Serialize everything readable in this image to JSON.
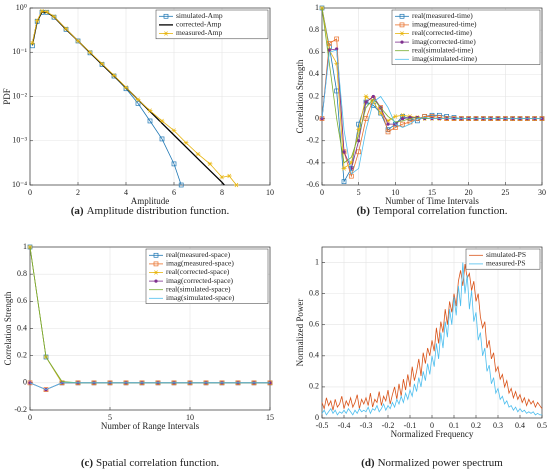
{
  "chart_data": [
    {
      "type": "line",
      "xlabel": "Amplitude",
      "ylabel": "PDF",
      "yscale": "log",
      "grid": true,
      "legend": "upper right",
      "caption_label": "(a)",
      "caption": "Amplitude distribution function.",
      "xlim": [
        0,
        10
      ],
      "xticks": [
        0,
        2,
        4,
        6,
        8,
        10
      ],
      "ylim": [
        0.0001,
        1
      ],
      "yticks": [
        {
          "value": 0.0001,
          "label": "10⁻⁴"
        },
        {
          "value": 0.001,
          "label": "10⁻³"
        },
        {
          "value": 0.01,
          "label": "10⁻²"
        },
        {
          "value": 0.1,
          "label": "10⁻¹"
        },
        {
          "value": 1,
          "label": "10⁰"
        }
      ],
      "series": [
        {
          "name": "simulated-Amp",
          "color": "#1f77b4",
          "marker": "square",
          "x": [
            0.1,
            0.3,
            0.5,
            0.7,
            1.0,
            1.5,
            2.0,
            2.5,
            3.0,
            3.5,
            4.0,
            4.5,
            5.0,
            5.5,
            6.0,
            6.3
          ],
          "values": [
            0.14,
            0.5,
            0.8,
            0.8,
            0.62,
            0.33,
            0.18,
            0.097,
            0.053,
            0.029,
            0.015,
            0.007,
            0.0028,
            0.0011,
            0.0003,
            0.0001
          ]
        },
        {
          "name": "corrected-Amp",
          "color": "#000000",
          "marker": null,
          "x": [
            0.1,
            0.3,
            0.5,
            0.7,
            1.0,
            1.5,
            2.0,
            3.0,
            4.0,
            5.0,
            6.0,
            7.0,
            8.0,
            8.1
          ],
          "values": [
            0.15,
            0.5,
            0.82,
            0.8,
            0.63,
            0.33,
            0.18,
            0.053,
            0.0158,
            0.0046,
            0.00134,
            0.00039,
            0.000115,
            0.0001
          ]
        },
        {
          "name": "measured-Amp",
          "color": "#e8b50e",
          "marker": "star",
          "x": [
            0.1,
            0.3,
            0.5,
            0.7,
            1.0,
            1.5,
            2.0,
            2.5,
            3.0,
            3.5,
            4.0,
            4.5,
            5.0,
            5.5,
            6.0,
            6.5,
            7.0,
            7.5,
            8.0,
            8.3,
            8.6
          ],
          "values": [
            0.16,
            0.52,
            0.85,
            0.82,
            0.64,
            0.34,
            0.18,
            0.1,
            0.055,
            0.03,
            0.016,
            0.0085,
            0.0048,
            0.0028,
            0.0017,
            0.0009,
            0.0005,
            0.0003,
            0.00015,
            0.00016,
            0.0001
          ]
        }
      ]
    },
    {
      "type": "line",
      "xlabel": "Number of Time Intervals",
      "ylabel": "Correlation Strength",
      "grid": true,
      "legend": "upper right",
      "caption_label": "(b)",
      "caption": "Temporal correlation function.",
      "xlim": [
        0,
        30
      ],
      "xticks": [
        0,
        5,
        10,
        15,
        20,
        25,
        30
      ],
      "ylim": [
        -0.6,
        1
      ],
      "yticks": [
        -0.6,
        -0.4,
        -0.2,
        0,
        0.2,
        0.4,
        0.6,
        0.8,
        1
      ],
      "x": [
        0,
        1,
        2,
        3,
        4,
        5,
        6,
        7,
        8,
        9,
        10,
        11,
        12,
        13,
        14,
        15,
        16,
        17,
        18,
        19,
        20,
        21,
        22,
        23,
        24,
        25,
        26,
        27,
        28,
        29,
        30
      ],
      "series": [
        {
          "name": "real(measured-time)",
          "color": "#1f77b4",
          "marker": "square",
          "values": [
            1,
            0.65,
            0.25,
            -0.57,
            -0.45,
            -0.05,
            0.15,
            0.12,
            0.05,
            -0.1,
            -0.05,
            0.02,
            0,
            -0.02,
            0.02,
            0.03,
            0.03,
            0.02,
            0.01,
            0,
            0,
            0,
            0,
            0,
            0,
            0,
            0,
            0,
            0,
            0,
            0
          ]
        },
        {
          "name": "imag(measured-time)",
          "color": "#e8702a",
          "marker": "square",
          "values": [
            0,
            0.68,
            0.72,
            -0.3,
            -0.52,
            -0.3,
            0,
            0.18,
            0.1,
            -0.12,
            -0.08,
            -0.05,
            -0.03,
            0,
            0.02,
            0.02,
            0.01,
            0,
            0,
            0,
            0,
            0,
            0,
            0,
            0,
            0,
            0,
            0,
            0,
            0,
            0
          ]
        },
        {
          "name": "real(corrected-time)",
          "color": "#e8b50e",
          "marker": "star",
          "values": [
            1,
            0.62,
            0.5,
            -0.45,
            -0.4,
            -0.1,
            0.2,
            0.15,
            0.05,
            -0.02,
            0.02,
            0.03,
            0.02,
            0.01,
            0,
            0,
            0,
            0,
            0,
            0,
            0,
            0,
            0,
            0,
            0,
            0,
            0,
            0,
            0,
            0,
            0
          ]
        },
        {
          "name": "imag(corrected-time)",
          "color": "#7e2f8e",
          "marker": "circle",
          "values": [
            0,
            0.62,
            0.63,
            -0.3,
            -0.45,
            -0.2,
            0.15,
            0.2,
            0.1,
            -0.05,
            -0.05,
            0,
            0.01,
            0.01,
            0,
            0,
            0,
            0,
            0,
            0,
            0,
            0,
            0,
            0,
            0,
            0,
            0,
            0,
            0,
            0,
            0
          ]
        },
        {
          "name": "real(simulated-time)",
          "color": "#77ac30",
          "marker": null,
          "values": [
            1,
            0.5,
            0,
            -0.4,
            -0.35,
            -0.15,
            0.1,
            0.18,
            0.1,
            0.02,
            -0.03,
            -0.02,
            0,
            0.01,
            0,
            0,
            0,
            0,
            0,
            0,
            0,
            0,
            0,
            0,
            0,
            0,
            0,
            0,
            0,
            0,
            0
          ]
        },
        {
          "name": "imag(simulated-time)",
          "color": "#4dbeee",
          "marker": null,
          "values": [
            0,
            0.6,
            0.62,
            -0.1,
            -0.5,
            -0.45,
            -0.1,
            0.15,
            0.2,
            0.1,
            -0.05,
            -0.08,
            -0.05,
            0,
            0.01,
            0,
            0,
            0,
            0,
            0,
            0,
            0,
            0,
            0,
            0,
            0,
            0,
            0,
            0,
            0,
            0
          ]
        }
      ]
    },
    {
      "type": "line",
      "xlabel": "Number of Range Intervals",
      "ylabel": "Correlation Strength",
      "grid": true,
      "legend": "upper right",
      "caption_label": "(c)",
      "caption": "Spatial correlation function.",
      "xlim": [
        0,
        15
      ],
      "xticks": [
        0,
        5,
        10,
        15
      ],
      "ylim": [
        -0.2,
        1
      ],
      "yticks": [
        -0.2,
        0,
        0.2,
        0.4,
        0.6,
        0.8,
        1
      ],
      "x": [
        0,
        1,
        2,
        3,
        4,
        5,
        6,
        7,
        8,
        9,
        10,
        11,
        12,
        13,
        14,
        15
      ],
      "series": [
        {
          "name": "real(measured-space)",
          "color": "#1f77b4",
          "marker": "square",
          "values": [
            1,
            0.19,
            0,
            0,
            0,
            0,
            0,
            0,
            0,
            0,
            0,
            0,
            0,
            0,
            0,
            0
          ]
        },
        {
          "name": "imag(measured-space)",
          "color": "#e8702a",
          "marker": "square",
          "values": [
            0,
            -0.05,
            0,
            0,
            0,
            0,
            0,
            0,
            0,
            0,
            0,
            0,
            0,
            0,
            0,
            0
          ]
        },
        {
          "name": "real(corrected-space)",
          "color": "#e8b50e",
          "marker": "star",
          "values": [
            1,
            0.19,
            0,
            0,
            0,
            0,
            0,
            0,
            0,
            0,
            0,
            0,
            0,
            0,
            0,
            0
          ]
        },
        {
          "name": "imag(corrected-space)",
          "color": "#7e2f8e",
          "marker": "circle",
          "values": [
            0,
            -0.05,
            0,
            0,
            0,
            0,
            0,
            0,
            0,
            0,
            0,
            0,
            0,
            0,
            0,
            0
          ]
        },
        {
          "name": "real(simulated-space)",
          "color": "#77ac30",
          "marker": null,
          "values": [
            1,
            0.19,
            0.01,
            0,
            0,
            0,
            0,
            0,
            0,
            0,
            0,
            0,
            0,
            0,
            0,
            0
          ]
        },
        {
          "name": "imag(simulated-space)",
          "color": "#4dbeee",
          "marker": null,
          "values": [
            0,
            -0.05,
            0,
            0,
            0,
            0,
            0,
            0,
            0,
            0,
            0,
            0,
            0,
            0,
            0,
            0
          ]
        }
      ]
    },
    {
      "type": "line",
      "xlabel": "Normalized Frequency",
      "ylabel": "Normalized Power",
      "grid": true,
      "legend": "upper right",
      "caption_label": "(d)",
      "caption": "Normalized power spectrum",
      "xlim": [
        -0.5,
        0.5
      ],
      "xticks": [
        -0.5,
        -0.4,
        -0.3,
        -0.2,
        -0.1,
        0,
        0.1,
        0.2,
        0.3,
        0.4,
        0.5
      ],
      "ylim": [
        0,
        1.1
      ],
      "yticks": [
        0,
        0.2,
        0.4,
        0.6,
        0.8,
        1
      ],
      "x": [
        -0.5,
        -0.49,
        -0.48,
        -0.47,
        -0.46,
        -0.45,
        -0.44,
        -0.43,
        -0.42,
        -0.41,
        -0.4,
        -0.39,
        -0.38,
        -0.37,
        -0.36,
        -0.35,
        -0.34,
        -0.33,
        -0.32,
        -0.31,
        -0.3,
        -0.29,
        -0.28,
        -0.27,
        -0.26,
        -0.25,
        -0.24,
        -0.23,
        -0.22,
        -0.21,
        -0.2,
        -0.19,
        -0.18,
        -0.17,
        -0.16,
        -0.15,
        -0.14,
        -0.13,
        -0.12,
        -0.11,
        -0.1,
        -0.09,
        -0.08,
        -0.07,
        -0.06,
        -0.05,
        -0.04,
        -0.03,
        -0.02,
        -0.01,
        0,
        0.01,
        0.02,
        0.03,
        0.04,
        0.05,
        0.06,
        0.07,
        0.08,
        0.09,
        0.1,
        0.11,
        0.12,
        0.13,
        0.14,
        0.15,
        0.16,
        0.17,
        0.18,
        0.19,
        0.2,
        0.21,
        0.22,
        0.23,
        0.24,
        0.25,
        0.26,
        0.27,
        0.28,
        0.29,
        0.3,
        0.31,
        0.32,
        0.33,
        0.34,
        0.35,
        0.36,
        0.37,
        0.38,
        0.39,
        0.4,
        0.41,
        0.42,
        0.43,
        0.44,
        0.45,
        0.46,
        0.47,
        0.48,
        0.49,
        0.5
      ],
      "series": [
        {
          "name": "simulated-PS",
          "color": "#d95319",
          "marker": null,
          "values": [
            0.1,
            0.06,
            0.13,
            0.08,
            0.11,
            0.05,
            0.12,
            0.07,
            0.09,
            0.14,
            0.06,
            0.11,
            0.08,
            0.13,
            0.07,
            0.1,
            0.15,
            0.06,
            0.12,
            0.09,
            0.13,
            0.08,
            0.16,
            0.07,
            0.12,
            0.1,
            0.17,
            0.08,
            0.14,
            0.11,
            0.18,
            0.09,
            0.15,
            0.2,
            0.12,
            0.22,
            0.14,
            0.25,
            0.18,
            0.28,
            0.2,
            0.33,
            0.24,
            0.3,
            0.38,
            0.27,
            0.42,
            0.35,
            0.45,
            0.4,
            0.5,
            0.43,
            0.58,
            0.48,
            0.62,
            0.55,
            0.7,
            0.6,
            0.75,
            0.68,
            0.8,
            0.72,
            0.88,
            0.95,
            0.85,
            0.99,
            0.9,
            0.93,
            0.82,
            0.88,
            0.75,
            0.8,
            0.65,
            0.58,
            0.62,
            0.45,
            0.5,
            0.38,
            0.42,
            0.3,
            0.33,
            0.25,
            0.28,
            0.2,
            0.24,
            0.16,
            0.19,
            0.13,
            0.17,
            0.12,
            0.15,
            0.1,
            0.13,
            0.08,
            0.12,
            0.09,
            0.11,
            0.07,
            0.1,
            0.08,
            0.06
          ]
        },
        {
          "name": "measured-PS",
          "color": "#4dbeee",
          "marker": null,
          "values": [
            0.03,
            0.05,
            0.02,
            0.04,
            0.06,
            0.03,
            0.05,
            0.02,
            0.04,
            0.03,
            0.05,
            0.03,
            0.06,
            0.04,
            0.02,
            0.05,
            0.03,
            0.06,
            0.04,
            0.05,
            0.04,
            0.07,
            0.03,
            0.06,
            0.05,
            0.08,
            0.04,
            0.06,
            0.09,
            0.05,
            0.08,
            0.06,
            0.1,
            0.07,
            0.12,
            0.09,
            0.14,
            0.1,
            0.16,
            0.12,
            0.18,
            0.14,
            0.22,
            0.17,
            0.26,
            0.2,
            0.3,
            0.24,
            0.35,
            0.28,
            0.4,
            0.33,
            0.48,
            0.38,
            0.55,
            0.45,
            0.62,
            0.52,
            0.7,
            0.6,
            0.78,
            0.66,
            0.85,
            0.72,
            1.0,
            0.8,
            0.92,
            0.7,
            0.82,
            0.62,
            0.68,
            0.5,
            0.55,
            0.4,
            0.45,
            0.3,
            0.34,
            0.22,
            0.26,
            0.16,
            0.19,
            0.12,
            0.14,
            0.09,
            0.11,
            0.07,
            0.08,
            0.05,
            0.07,
            0.04,
            0.06,
            0.04,
            0.05,
            0.03,
            0.04,
            0.03,
            0.04,
            0.02,
            0.03,
            0.02,
            0.02
          ]
        }
      ]
    }
  ]
}
